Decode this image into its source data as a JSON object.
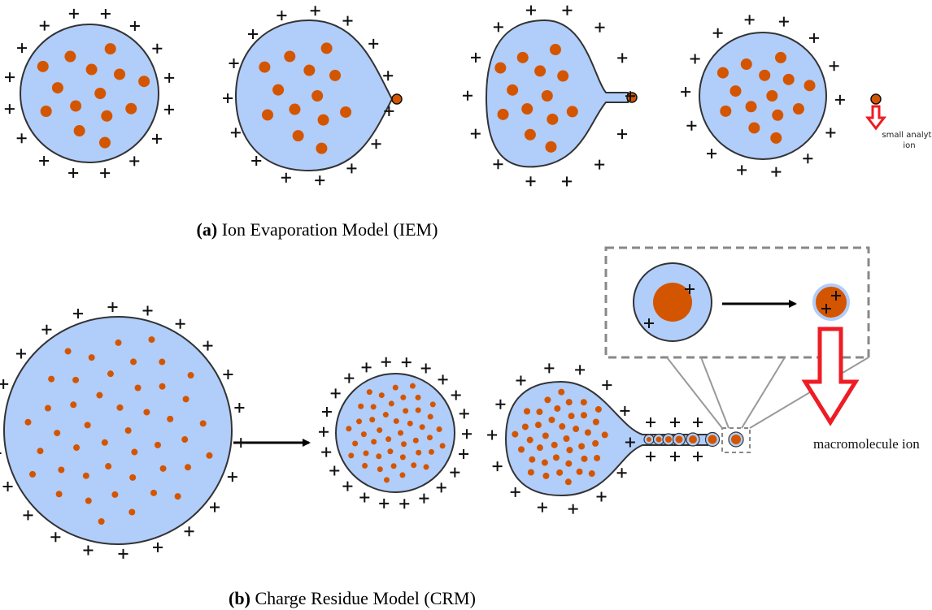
{
  "caption_a": {
    "label": "(a)",
    "text": "Ion Evaporation Model (IEM)"
  },
  "caption_b": {
    "label": "(b)",
    "text": "Charge Residue Model (CRM)"
  },
  "annotations": {
    "small_analyte_ion": [
      "small analyte",
      "ion"
    ],
    "macromolecule_ion": "macromolecule ion"
  }
}
